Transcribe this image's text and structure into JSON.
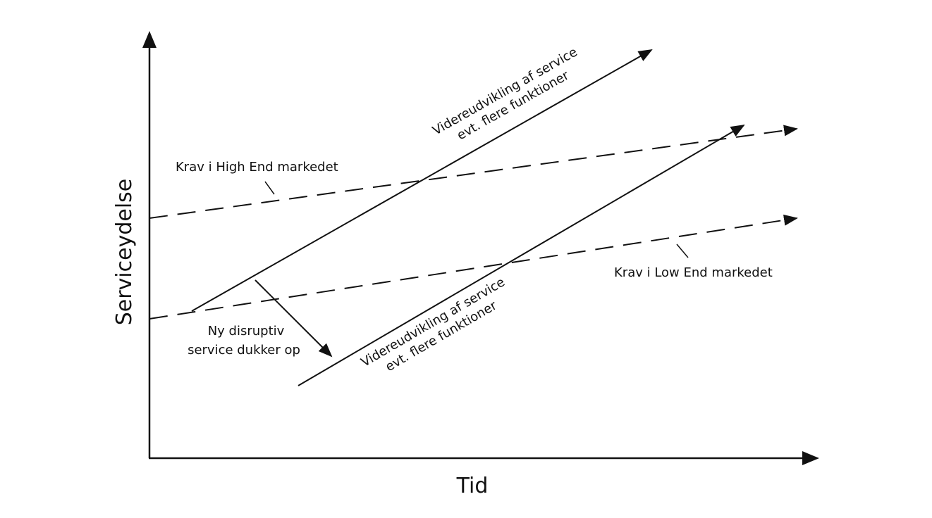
{
  "axes": {
    "y_label": "Serviceydelse",
    "x_label": "Tid"
  },
  "labels": {
    "high_end": "Krav i High End markedet",
    "low_end": "Krav i Low End markedet",
    "upper_dev_line1": "Videreudvikling af service",
    "upper_dev_line2": "evt. flere funktioner",
    "lower_dev_line1": "Videreudvikling af service",
    "lower_dev_line2": "evt. flere funktioner",
    "disruptive_line1": "Ny disruptiv",
    "disruptive_line2": "service dukker op"
  },
  "colors": {
    "ink": "#111111",
    "background": "#ffffff"
  }
}
